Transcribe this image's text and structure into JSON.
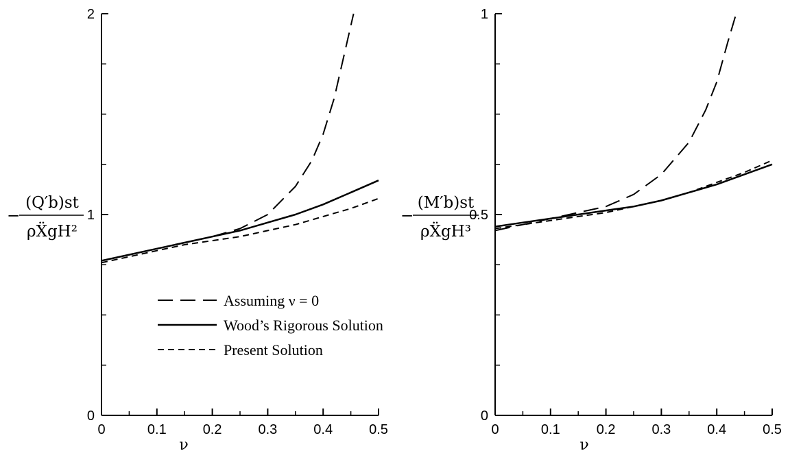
{
  "chart_data": [
    {
      "type": "line",
      "ylabel": "−(Q_b′)_st / ρẌ_gH²",
      "ylabel_num": "(Q′b)st",
      "ylabel_den": "ρẌgH²",
      "xlabel": "ν",
      "xlim": [
        0,
        0.5
      ],
      "ylim": [
        0,
        2
      ],
      "xticks": [
        "0",
        "0.1",
        "0.2",
        "0.3",
        "0.4",
        "0.5"
      ],
      "yticks": [
        "0",
        "1",
        "2"
      ],
      "grid": false,
      "legend": "lower-center",
      "series": [
        {
          "name": "Assuming ν = 0",
          "style": "long-dash",
          "x": [
            0,
            0.05,
            0.1,
            0.15,
            0.2,
            0.25,
            0.3,
            0.35,
            0.38,
            0.4,
            0.42,
            0.44,
            0.455
          ],
          "y": [
            0.77,
            0.8,
            0.83,
            0.86,
            0.89,
            0.93,
            1.0,
            1.14,
            1.27,
            1.4,
            1.58,
            1.82,
            2.0
          ]
        },
        {
          "name": "Wood’s Rigorous Solution",
          "style": "solid",
          "x": [
            0,
            0.05,
            0.1,
            0.15,
            0.2,
            0.25,
            0.3,
            0.35,
            0.4,
            0.45,
            0.5
          ],
          "y": [
            0.77,
            0.8,
            0.83,
            0.86,
            0.89,
            0.92,
            0.96,
            1.0,
            1.05,
            1.11,
            1.17
          ]
        },
        {
          "name": "Present Solution",
          "style": "short-dash",
          "x": [
            0,
            0.05,
            0.1,
            0.15,
            0.2,
            0.25,
            0.3,
            0.35,
            0.4,
            0.45,
            0.5
          ],
          "y": [
            0.76,
            0.79,
            0.82,
            0.85,
            0.87,
            0.89,
            0.92,
            0.95,
            0.99,
            1.03,
            1.08
          ]
        }
      ]
    },
    {
      "type": "line",
      "ylabel": "−(M_b′)_st / ρẌ_gH³",
      "ylabel_num": "(M′b)st",
      "ylabel_den": "ρẌgH³",
      "xlabel": "ν",
      "xlim": [
        0,
        0.5
      ],
      "ylim": [
        0,
        1
      ],
      "xticks": [
        "0",
        "0.1",
        "0.2",
        "0.3",
        "0.4",
        "0.5"
      ],
      "yticks": [
        "0",
        "0.5",
        "1"
      ],
      "grid": false,
      "series": [
        {
          "name": "Assuming ν = 0",
          "style": "long-dash",
          "x": [
            0,
            0.05,
            0.1,
            0.15,
            0.2,
            0.25,
            0.3,
            0.35,
            0.38,
            0.4,
            0.42,
            0.435
          ],
          "y": [
            0.46,
            0.475,
            0.49,
            0.505,
            0.52,
            0.55,
            0.6,
            0.68,
            0.76,
            0.83,
            0.93,
            1.0
          ]
        },
        {
          "name": "Wood’s Rigorous Solution",
          "style": "solid",
          "x": [
            0,
            0.05,
            0.1,
            0.15,
            0.2,
            0.25,
            0.3,
            0.35,
            0.4,
            0.45,
            0.5
          ],
          "y": [
            0.47,
            0.48,
            0.49,
            0.5,
            0.51,
            0.52,
            0.535,
            0.555,
            0.575,
            0.6,
            0.625
          ]
        },
        {
          "name": "Present Solution",
          "style": "short-dash",
          "x": [
            0,
            0.05,
            0.1,
            0.15,
            0.2,
            0.25,
            0.3,
            0.35,
            0.4,
            0.45,
            0.5
          ],
          "y": [
            0.465,
            0.475,
            0.485,
            0.495,
            0.505,
            0.52,
            0.535,
            0.555,
            0.58,
            0.605,
            0.635
          ]
        }
      ]
    }
  ],
  "colors": {
    "line": "#000000",
    "background": "#ffffff"
  }
}
